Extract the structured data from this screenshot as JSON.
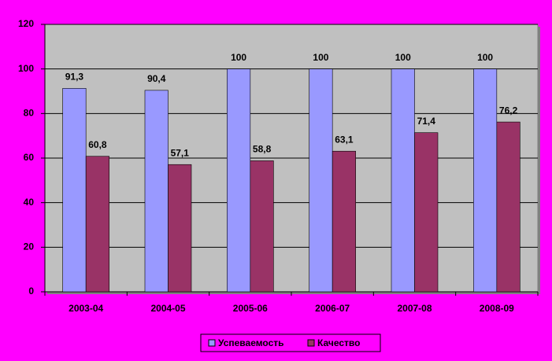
{
  "chart_data": {
    "type": "bar",
    "categories": [
      "2003-04",
      "2004-05",
      "2005-06",
      "2006-07",
      "2007-08",
      "2008-09"
    ],
    "series": [
      {
        "name": "Успеваемость",
        "color": "#9999ff",
        "values": [
          91.3,
          90.4,
          100,
          100,
          100,
          100
        ],
        "value_labels": [
          "91,3",
          "90,4",
          "100",
          "100",
          "100",
          "100"
        ]
      },
      {
        "name": "Качество",
        "color": "#993366",
        "values": [
          60.8,
          57.1,
          58.8,
          63.1,
          71.4,
          76.2
        ],
        "value_labels": [
          "60,8",
          "57,1",
          "58,8",
          "63,1",
          "71,4",
          "76,2"
        ]
      }
    ],
    "ylim": [
      0,
      120
    ],
    "yticks": [
      0,
      20,
      40,
      60,
      80,
      100,
      120
    ],
    "grid": true,
    "legend": "bottom"
  }
}
